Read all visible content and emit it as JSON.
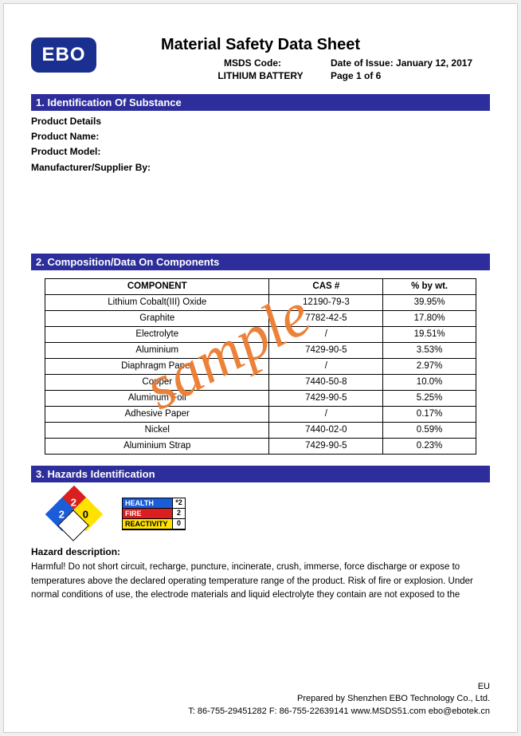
{
  "logo_text": "EBO",
  "title": "Material Safety Data Sheet",
  "msds_code_label": "MSDS Code:",
  "date_label": "Date of Issue: January 12, 2017",
  "battery": "LITHIUM BATTERY",
  "page_label": "Page 1 of 6",
  "watermark": "sample",
  "section1": {
    "bar": "1. Identification Of Substance",
    "lines": [
      "Product Details",
      "Product Name:",
      "Product Model:",
      "Manufacturer/Supplier By:"
    ]
  },
  "section2": {
    "bar": "2. Composition/Data On Components",
    "columns": [
      "COMPONENT",
      "CAS #",
      "% by wt."
    ],
    "rows": [
      [
        "Lithium Cobalt(III) Oxide",
        "12190-79-3",
        "39.95%"
      ],
      [
        "Graphite",
        "7782-42-5",
        "17.80%"
      ],
      [
        "Electrolyte",
        "/",
        "19.51%"
      ],
      [
        "Aluminium",
        "7429-90-5",
        "3.53%"
      ],
      [
        "Diaphragm Paper",
        "/",
        "2.97%"
      ],
      [
        "Copper",
        "7440-50-8",
        "10.0%"
      ],
      [
        "Aluminum Foil",
        "7429-90-5",
        "5.25%"
      ],
      [
        "Adhesive Paper",
        "/",
        "0.17%"
      ],
      [
        "Nickel",
        "7440-02-0",
        "0.59%"
      ],
      [
        "Aluminium Strap",
        "7429-90-5",
        "0.23%"
      ]
    ]
  },
  "section3": {
    "bar": "3. Hazards Identification",
    "nfpa": {
      "health": "2",
      "fire": "2",
      "react": "0",
      "special": ""
    },
    "hmis": [
      {
        "label": "HEALTH",
        "class": "h",
        "value": "*2"
      },
      {
        "label": "FIRE",
        "class": "f",
        "value": "2"
      },
      {
        "label": "REACTIVITY",
        "class": "r",
        "value": "0"
      }
    ],
    "haz_title": "Hazard description:",
    "haz_text": "Harmful! Do not short circuit, recharge, puncture, incinerate, crush, immerse, force discharge or expose to temperatures above the declared operating temperature range of the product. Risk of fire or explosion. Under normal conditions of use, the electrode materials and liquid electrolyte they contain are not exposed to the"
  },
  "footer": {
    "l1": "EU",
    "l2": "Prepared by Shenzhen EBO Technology Co., Ltd.",
    "l3": "T: 86-755-29451282 F: 86-755-22639141 www.MSDS51.com ebo@ebotek.cn"
  },
  "colors": {
    "section_bar": "#2d2e9b",
    "logo_bg": "#1a2f8f",
    "watermark": "#ec7c30",
    "nfpa_red": "#d91f1f",
    "nfpa_blue": "#1a5dd9",
    "nfpa_yellow": "#ffe200"
  }
}
